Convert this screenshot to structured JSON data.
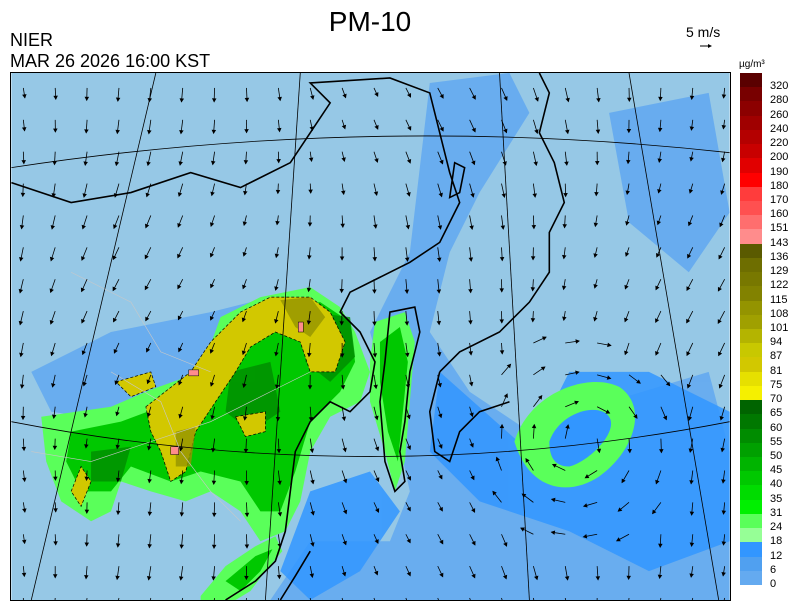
{
  "header": {
    "title": "PM-10",
    "organization": "NIER",
    "timestamp": "MAR 26 2026 16:00 KST",
    "vector_scale_label": "5 m/s"
  },
  "legend": {
    "unit": "µg/m³",
    "labels": [
      "320",
      "280",
      "260",
      "240",
      "220",
      "200",
      "190",
      "180",
      "170",
      "160",
      "151",
      "143",
      "136",
      "129",
      "122",
      "115",
      "108",
      "101",
      "94",
      "87",
      "81",
      "75",
      "70",
      "65",
      "60",
      "55",
      "50",
      "45",
      "40",
      "35",
      "31",
      "24",
      "18",
      "12",
      "6",
      "0"
    ],
    "colors": [
      "#5a0000",
      "#780000",
      "#8c0000",
      "#a00000",
      "#b40000",
      "#c80000",
      "#e10000",
      "#ff0000",
      "#ff3c3c",
      "#ff5050",
      "#ff6e6e",
      "#ff8c8c",
      "#5a5a00",
      "#6e6e00",
      "#787800",
      "#828200",
      "#949400",
      "#a0a000",
      "#b4b400",
      "#c8c800",
      "#d2c800",
      "#e6e000",
      "#f5f000",
      "#006400",
      "#007800",
      "#008c00",
      "#00a000",
      "#00b400",
      "#00c800",
      "#00dc00",
      "#00f000",
      "#5aff5a",
      "#96ff96",
      "#3296ff",
      "#50a0f0",
      "#64aaf0",
      "#82bee6",
      "#96c8e6"
    ]
  },
  "map": {
    "background_color": "#96c8e6",
    "coastline_color": "#000000",
    "overlay": "wind-vectors"
  }
}
